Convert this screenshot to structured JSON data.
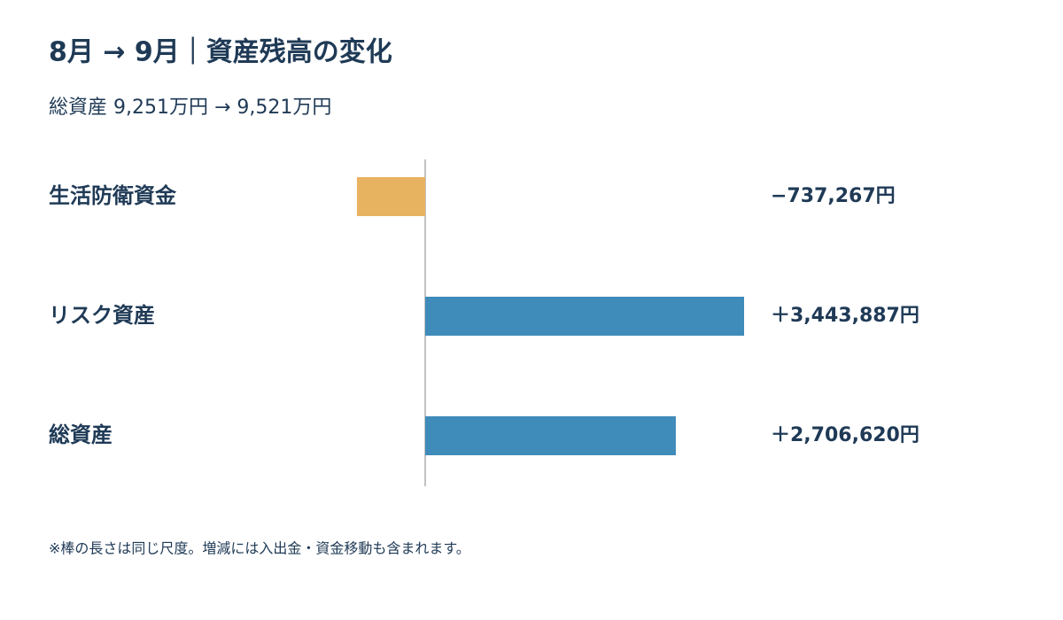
{
  "chart_data": {
    "type": "bar",
    "orientation": "horizontal",
    "title": "8月 → 9月｜資産残高の変化",
    "subtitle": "総資産 9,251万円 → 9,521万円",
    "categories": [
      "生活防衛資金",
      "リスク資産",
      "総資産"
    ],
    "values": [
      -737267,
      3443887,
      2706620
    ],
    "value_labels": [
      "−737,267円",
      "＋3,443,887円",
      "＋2,706,620円"
    ],
    "colors": [
      "#e8b360",
      "#3f8bb9",
      "#3f8bb9"
    ],
    "note": "※棒の長さは同じ尺度。増減には入出金・資金移動も含まれます。"
  }
}
